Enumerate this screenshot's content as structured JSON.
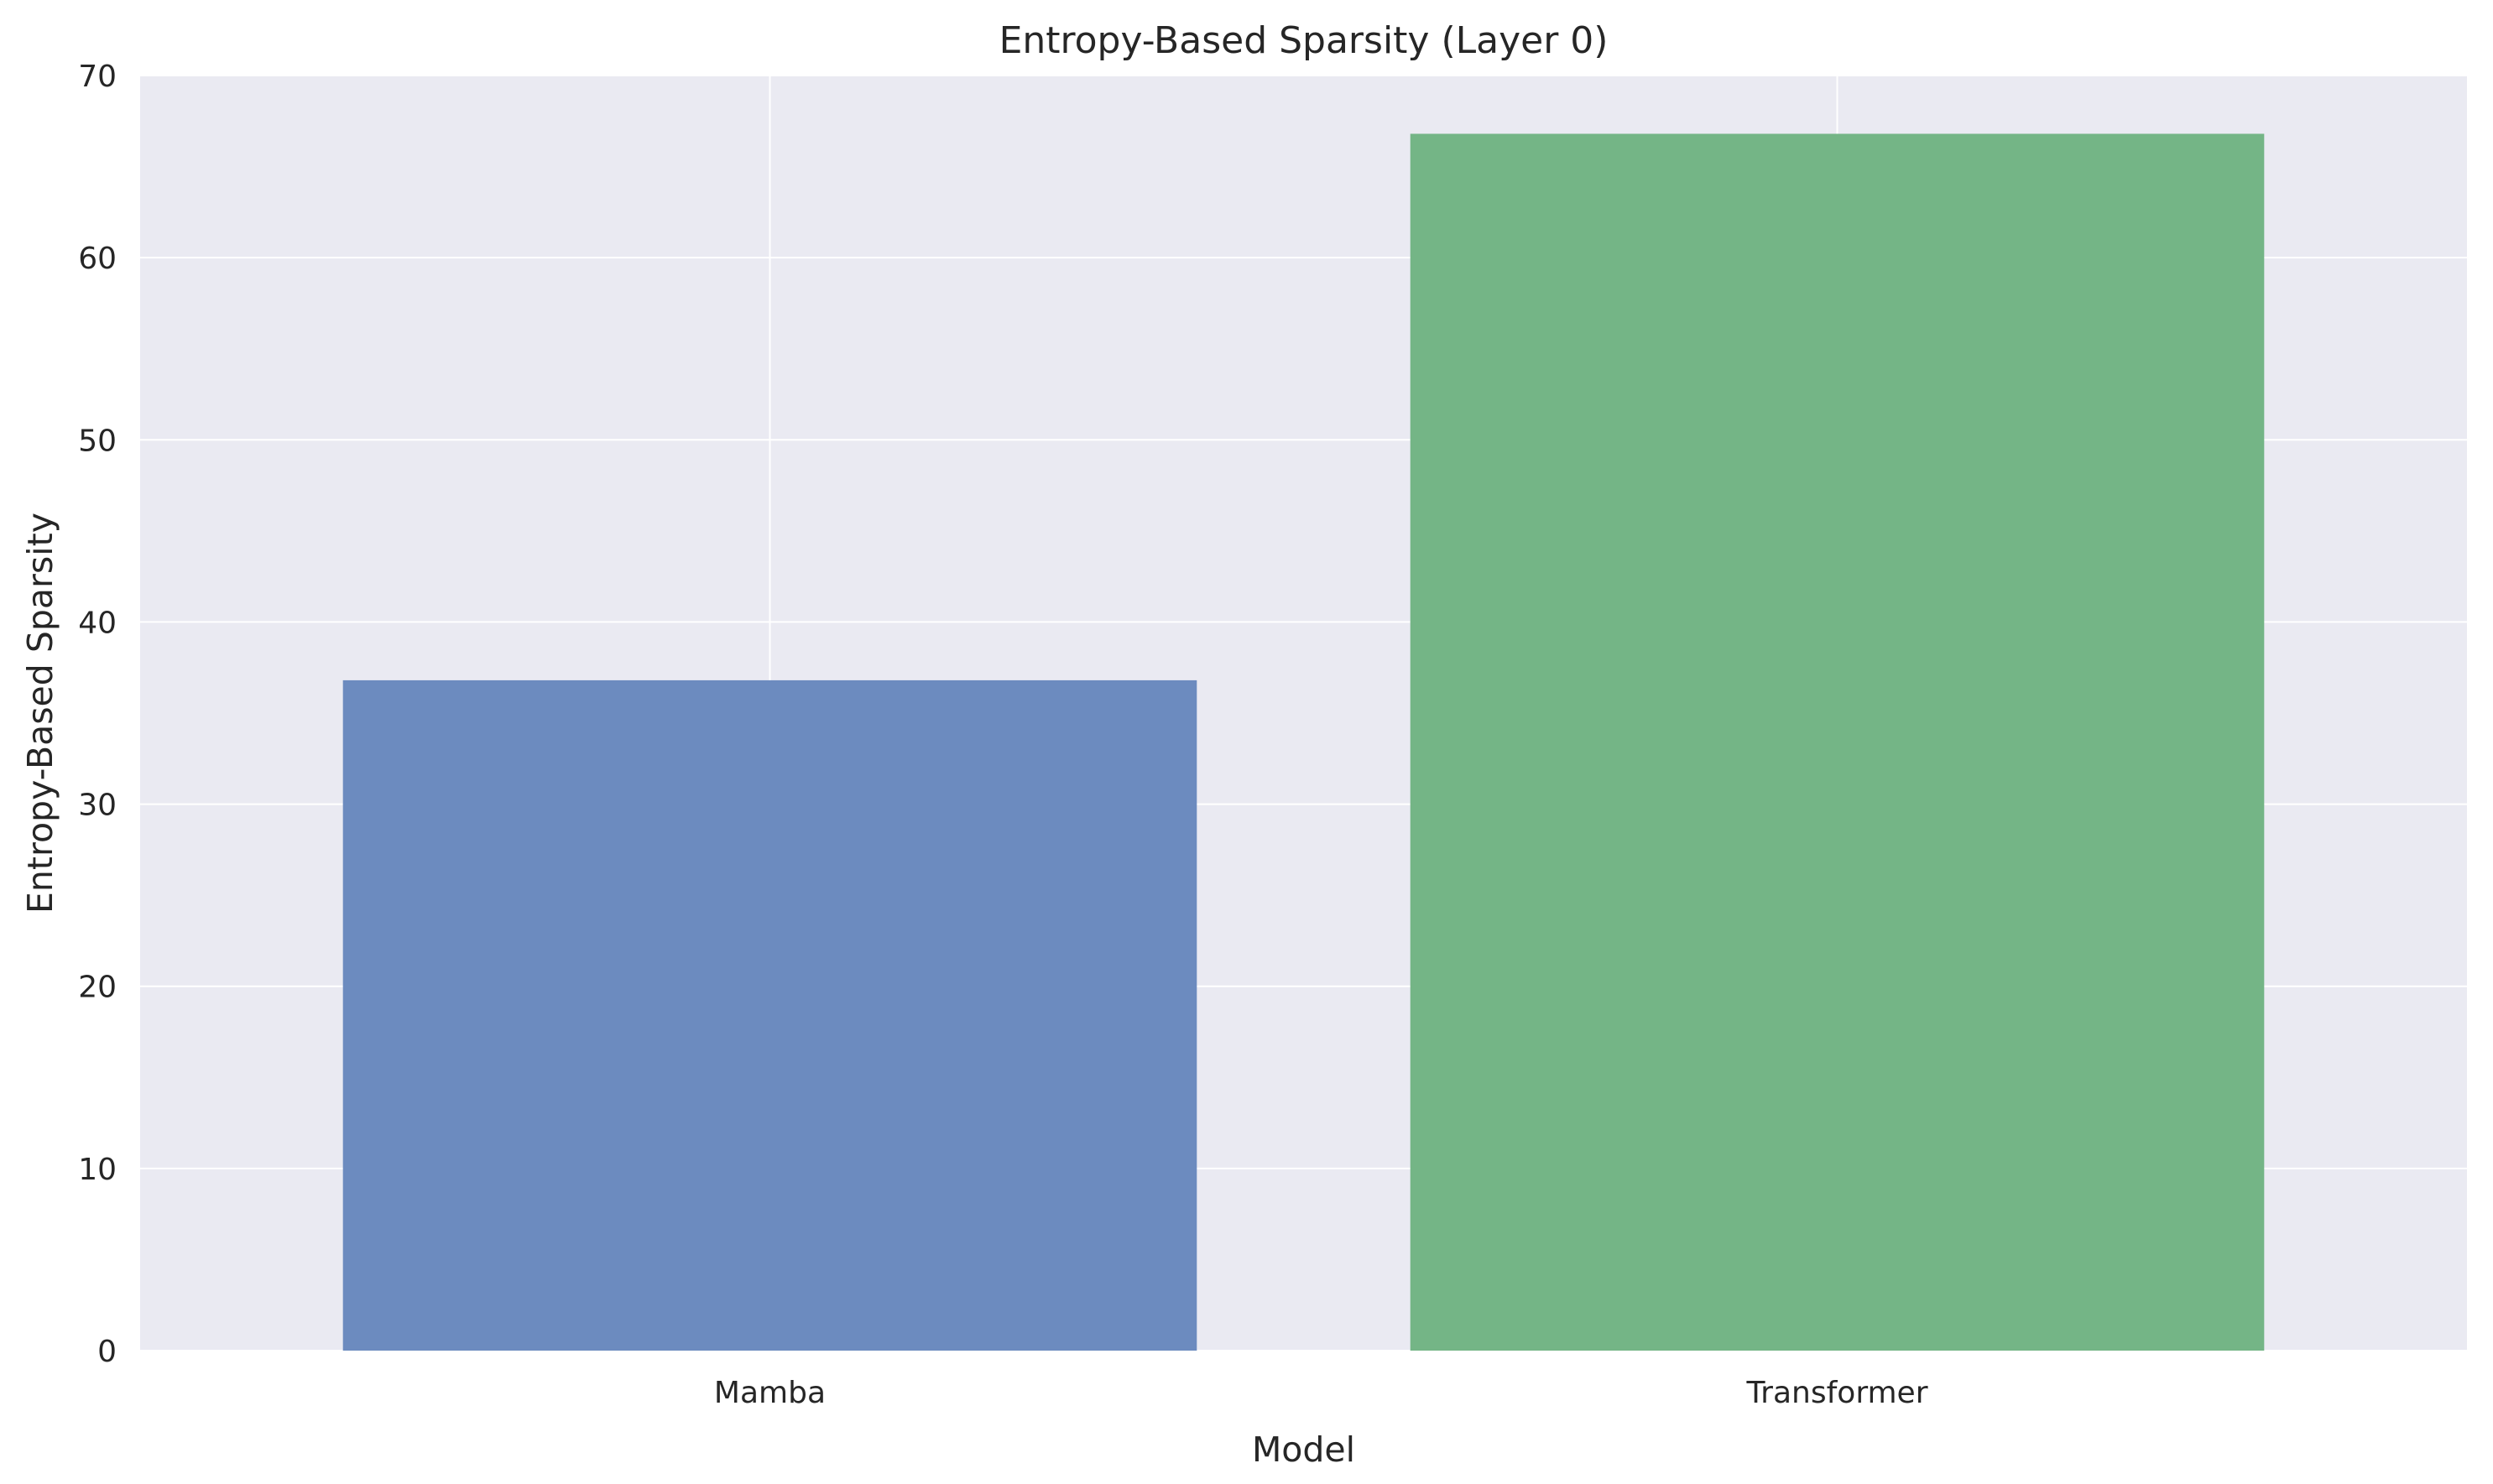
{
  "chart_data": {
    "type": "bar",
    "title": "Entropy-Based Sparsity (Layer 0)",
    "xlabel": "Model",
    "ylabel": "Entropy-Based Sparsity",
    "categories": [
      "Mamba",
      "Transformer"
    ],
    "values": [
      36.8,
      66.8
    ],
    "ylim": [
      0,
      70
    ],
    "yticks": [
      0,
      10,
      20,
      30,
      40,
      50,
      60,
      70
    ],
    "grid": true,
    "legend": "none",
    "colors": {
      "background": "#ffffff",
      "plot_background": "#eaeaf2",
      "grid": "#ffffff",
      "bars": [
        "#6c8bbf",
        "#74b586"
      ],
      "text": "#262626"
    }
  }
}
